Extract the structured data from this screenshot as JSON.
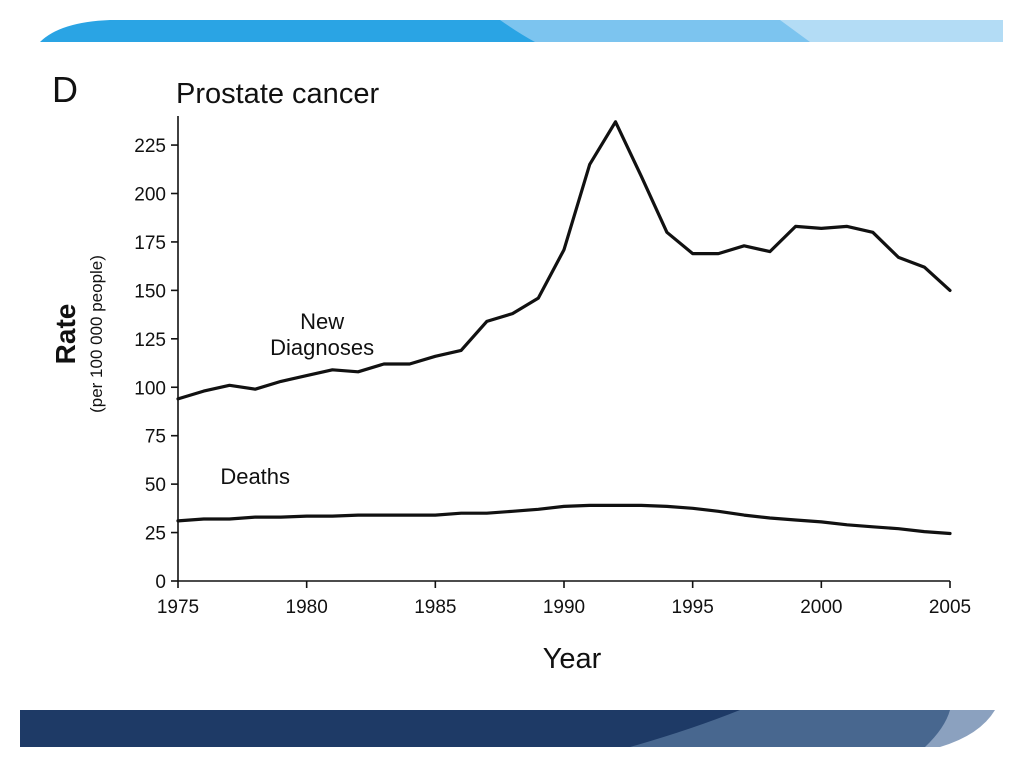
{
  "colors": {
    "band_top_dark": "#2aa4e4",
    "band_top_light": "#7cc4ef",
    "band_top_pale": "#b3dcf5",
    "band_bottom_dark": "#1e3a66",
    "band_bottom_mid": "#48678f",
    "band_bottom_light": "#8ba1bf",
    "line": "#111111"
  },
  "chart_data": {
    "type": "line",
    "panel_letter": "D",
    "title": "Prostate cancer",
    "xlabel": "Year",
    "ylabel": "Rate",
    "ylabel_sub": "(per 100 000 people)",
    "xlim": [
      1975,
      2005
    ],
    "ylim": [
      0,
      240
    ],
    "x_ticks": [
      1975,
      1980,
      1985,
      1990,
      1995,
      2000,
      2005
    ],
    "y_ticks": [
      0,
      25,
      50,
      75,
      100,
      125,
      150,
      175,
      200,
      225
    ],
    "grid": false,
    "legend": "none",
    "x": [
      1975,
      1976,
      1977,
      1978,
      1979,
      1980,
      1981,
      1982,
      1983,
      1984,
      1985,
      1986,
      1987,
      1988,
      1989,
      1990,
      1991,
      1992,
      1993,
      1994,
      1995,
      1996,
      1997,
      1998,
      1999,
      2000,
      2001,
      2002,
      2003,
      2004,
      2005
    ],
    "series": [
      {
        "name": "New Diagnoses",
        "label_lines": [
          "New",
          "Diagnoses"
        ],
        "label_at": {
          "x": 1980.6,
          "y": 130
        },
        "values": [
          94,
          98,
          101,
          99,
          103,
          106,
          109,
          108,
          112,
          112,
          116,
          119,
          134,
          138,
          146,
          171,
          215,
          237,
          209,
          180,
          169,
          169,
          173,
          170,
          183,
          182,
          183,
          180,
          167,
          162,
          150
        ]
      },
      {
        "name": "Deaths",
        "label_lines": [
          "Deaths"
        ],
        "label_at": {
          "x": 1978.0,
          "y": 50
        },
        "values": [
          31,
          32,
          32,
          33,
          33,
          33.5,
          33.5,
          34,
          34,
          34,
          34,
          35,
          35,
          36,
          37,
          38.5,
          39,
          39,
          39,
          38.5,
          37.5,
          36,
          34,
          32.5,
          31.5,
          30.5,
          29,
          28,
          27,
          25.5,
          24.5
        ]
      }
    ]
  }
}
